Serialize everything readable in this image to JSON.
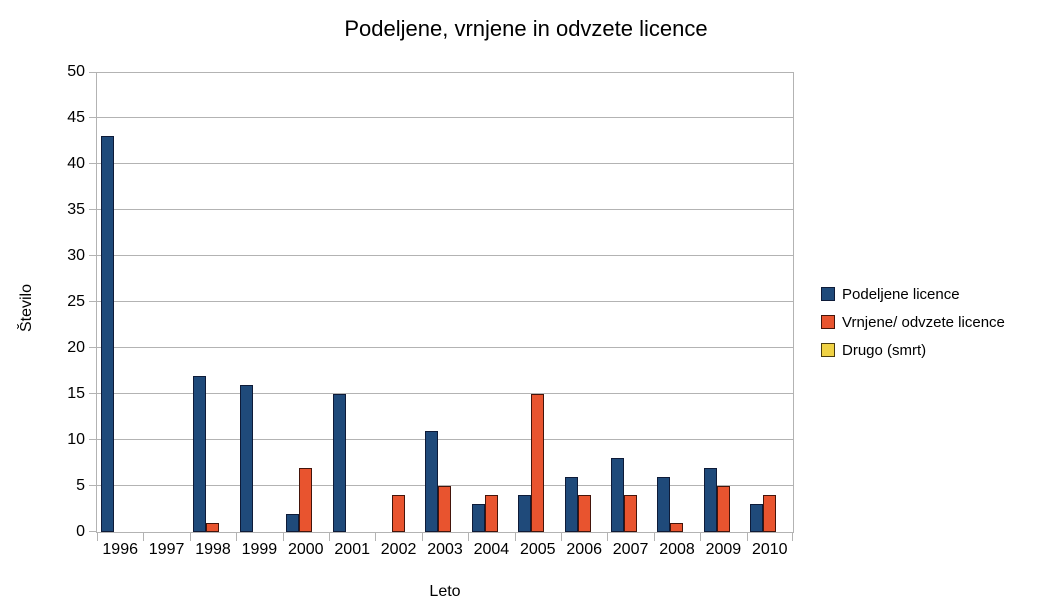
{
  "chart_data": {
    "type": "bar",
    "title": "Podeljene, vrnjene in odvzete licence",
    "xlabel": "Leto",
    "ylabel": "Število",
    "ylim": [
      0,
      50
    ],
    "ytick_step": 5,
    "grid": true,
    "legend_position": "right",
    "categories": [
      "1996",
      "1997",
      "1998",
      "1999",
      "2000",
      "2001",
      "2002",
      "2003",
      "2004",
      "2005",
      "2006",
      "2007",
      "2008",
      "2009",
      "2010"
    ],
    "series": [
      {
        "name": "Podeljene licence",
        "color": "#1f4a7a",
        "border_color": "#0e1b38",
        "values": [
          43,
          0,
          17,
          16,
          2,
          15,
          0,
          11,
          3,
          4,
          6,
          8,
          6,
          7,
          3
        ]
      },
      {
        "name": "Vrnjene/ odvzete licence",
        "color": "#e8542f",
        "border_color": "#43150b",
        "values": [
          0,
          0,
          1,
          0,
          7,
          0,
          4,
          5,
          4,
          15,
          4,
          4,
          1,
          5,
          4
        ]
      },
      {
        "name": "Drugo (smrt)",
        "color": "#f0d244",
        "border_color": "#4a3c0e",
        "values": [
          0,
          0,
          0,
          0,
          0,
          0,
          0,
          0,
          0,
          0,
          0,
          0,
          0,
          0,
          0
        ]
      }
    ],
    "colors": {
      "background": "#ffffff",
      "gridline": "#b3b3b3",
      "axis": "#b3b3b3",
      "text": "#000000"
    }
  }
}
